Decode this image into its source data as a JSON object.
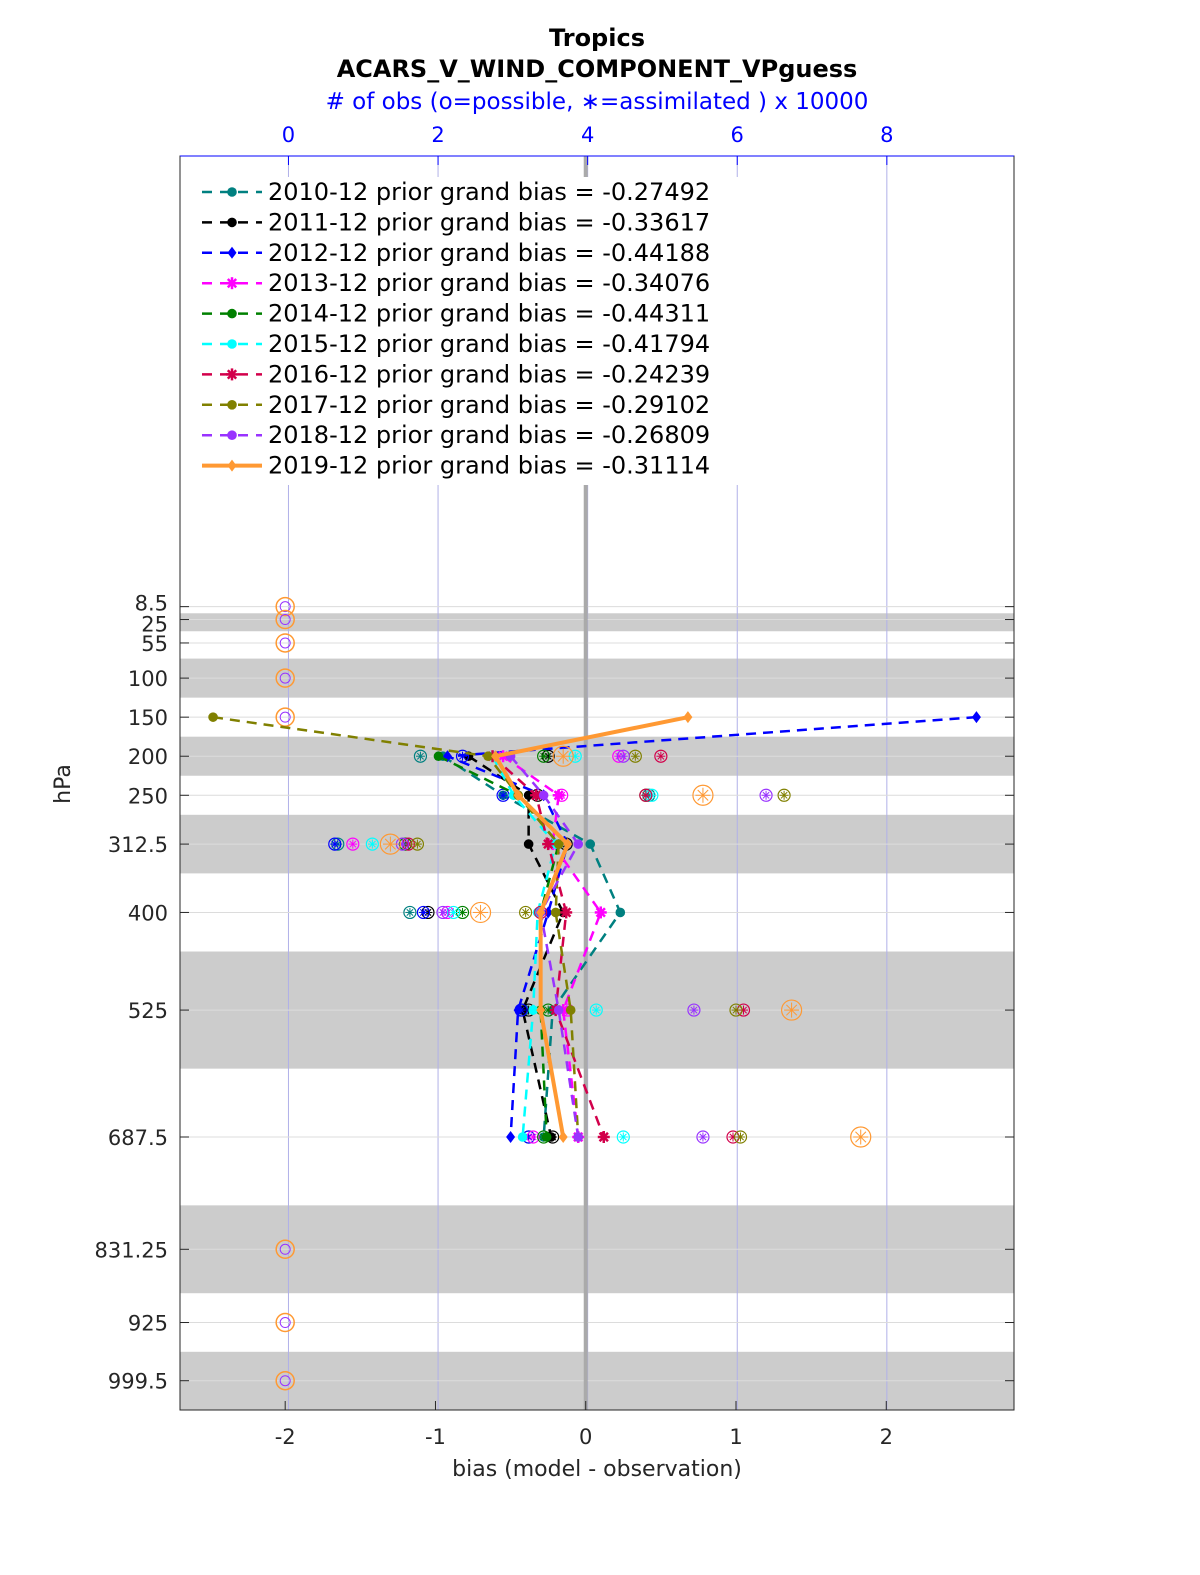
{
  "chart_data": {
    "type": "line",
    "title": "Tropics",
    "subtitle": "ACARS_V_WIND_COMPONENT_VPguess",
    "top_axis_label": "# of obs (o=possible, ∗=assimilated ) x 10000",
    "xlabel": "bias (model - observation)",
    "ylabel": "hPa",
    "xlim": [
      -2.7,
      2.85
    ],
    "x_ticks": [
      "-2",
      "-1",
      "0",
      "1",
      "2"
    ],
    "x_tick_values": [
      -2,
      -1,
      0,
      1,
      2
    ],
    "top_xlim": [
      -1.45,
      9.7
    ],
    "top_ticks": [
      "0",
      "2",
      "4",
      "6",
      "8"
    ],
    "top_tick_values": [
      0,
      2,
      4,
      6,
      8
    ],
    "pressure_levels": [
      8.5,
      25,
      55,
      100,
      150,
      200,
      250,
      312.5,
      400,
      525,
      687.5,
      831.25,
      925,
      999.5
    ],
    "y_tick_labels": [
      "8.5",
      "25",
      "55",
      "100",
      "150",
      "200",
      "250",
      "312.5",
      "400",
      "525",
      "687.5",
      "831.25",
      "925",
      "999.5"
    ],
    "layer_edges": [
      0,
      17,
      40,
      75,
      125,
      175,
      225,
      275,
      350,
      450,
      600,
      775,
      887.5,
      962.5,
      1037
    ],
    "zero_line": 0,
    "series": [
      {
        "name": "2010-12 prior grand bias = -0.27492",
        "color": "#008080",
        "marker": "circle",
        "points": [
          [
            -0.95,
            200
          ],
          [
            -0.55,
            250
          ],
          [
            0.03,
            312.5
          ],
          [
            0.23,
            400
          ],
          [
            -0.22,
            525
          ],
          [
            -0.28,
            687.5
          ]
        ],
        "possible": [
          [
            -1.1,
            200
          ],
          [
            0.42,
            250
          ],
          [
            -1.65,
            312.5
          ],
          [
            -1.17,
            400
          ],
          [
            -0.42,
            525
          ],
          [
            -0.38,
            687.5
          ]
        ]
      },
      {
        "name": "2011-12 prior grand bias = -0.33617",
        "color": "#000000",
        "marker": "circle",
        "points": [
          [
            -0.78,
            200
          ],
          [
            -0.38,
            250
          ],
          [
            -0.38,
            312.5
          ],
          [
            -0.15,
            400
          ],
          [
            -0.42,
            525
          ],
          [
            -0.23,
            687.5
          ]
        ],
        "possible": [
          [
            -0.25,
            200
          ],
          [
            -0.32,
            250
          ],
          [
            -0.13,
            312.5
          ],
          [
            -1.05,
            400
          ],
          [
            -0.38,
            525
          ],
          [
            -0.22,
            687.5
          ]
        ]
      },
      {
        "name": "2012-12 prior grand bias = -0.44188",
        "color": "#0000ff",
        "marker": "diamond",
        "points": [
          [
            2.6,
            150
          ],
          [
            -0.92,
            200
          ],
          [
            -0.28,
            250
          ],
          [
            -0.12,
            312.5
          ],
          [
            -0.25,
            400
          ],
          [
            -0.45,
            525
          ],
          [
            -0.5,
            687.5
          ]
        ],
        "possible": [
          [
            -0.82,
            200
          ],
          [
            -0.55,
            250
          ],
          [
            -1.67,
            312.5
          ],
          [
            -1.08,
            400
          ],
          [
            -0.43,
            525
          ],
          [
            -0.38,
            687.5
          ]
        ]
      },
      {
        "name": "2013-12 prior grand bias = -0.34076",
        "color": "#ff00ff",
        "marker": "star",
        "points": [
          [
            -0.55,
            200
          ],
          [
            -0.18,
            250
          ],
          [
            -0.22,
            312.5
          ],
          [
            0.1,
            400
          ],
          [
            -0.15,
            525
          ],
          [
            -0.05,
            687.5
          ]
        ],
        "possible": [
          [
            0.22,
            200
          ],
          [
            -0.16,
            250
          ],
          [
            -1.55,
            312.5
          ],
          [
            -0.92,
            400
          ],
          [
            -0.12,
            525
          ],
          [
            -0.35,
            687.5
          ]
        ]
      },
      {
        "name": "2014-12 prior grand bias = -0.44311",
        "color": "#008000",
        "marker": "circle",
        "points": [
          [
            -0.98,
            200
          ],
          [
            -0.45,
            250
          ],
          [
            -0.18,
            312.5
          ],
          [
            -0.3,
            400
          ],
          [
            -0.3,
            525
          ],
          [
            -0.26,
            687.5
          ]
        ],
        "possible": [
          [
            -0.28,
            200
          ],
          [
            0.4,
            250
          ],
          [
            -1.2,
            312.5
          ],
          [
            -0.82,
            400
          ],
          [
            -0.25,
            525
          ],
          [
            -0.28,
            687.5
          ]
        ]
      },
      {
        "name": "2015-12 prior grand bias = -0.41794",
        "color": "#00ffff",
        "marker": "circle",
        "points": [
          [
            -0.62,
            200
          ],
          [
            -0.48,
            250
          ],
          [
            -0.2,
            312.5
          ],
          [
            -0.32,
            400
          ],
          [
            -0.35,
            525
          ],
          [
            -0.42,
            687.5
          ]
        ],
        "possible": [
          [
            -0.07,
            200
          ],
          [
            0.44,
            250
          ],
          [
            -1.42,
            312.5
          ],
          [
            -0.88,
            400
          ],
          [
            0.07,
            525
          ],
          [
            0.25,
            687.5
          ]
        ]
      },
      {
        "name": "2016-12 prior grand bias = -0.24239",
        "color": "#d2004b",
        "marker": "star",
        "points": [
          [
            -0.62,
            200
          ],
          [
            -0.33,
            250
          ],
          [
            -0.25,
            312.5
          ],
          [
            -0.13,
            400
          ],
          [
            -0.2,
            525
          ],
          [
            0.12,
            687.5
          ]
        ],
        "possible": [
          [
            0.5,
            200
          ],
          [
            0.4,
            250
          ],
          [
            -1.18,
            312.5
          ],
          [
            -0.3,
            400
          ],
          [
            1.05,
            525
          ],
          [
            0.98,
            687.5
          ]
        ]
      },
      {
        "name": "2017-12 prior grand bias = -0.29102",
        "color": "#808000",
        "marker": "circle",
        "points": [
          [
            -2.48,
            150
          ],
          [
            -0.65,
            200
          ],
          [
            -0.45,
            250
          ],
          [
            -0.18,
            312.5
          ],
          [
            -0.2,
            400
          ],
          [
            -0.1,
            525
          ],
          [
            -0.05,
            687.5
          ]
        ],
        "possible": [
          [
            0.33,
            200
          ],
          [
            1.32,
            250
          ],
          [
            -1.12,
            312.5
          ],
          [
            -0.4,
            400
          ],
          [
            1.0,
            525
          ],
          [
            1.03,
            687.5
          ]
        ]
      },
      {
        "name": "2018-12 prior grand bias = -0.26809",
        "color": "#9933ff",
        "marker": "circle",
        "points": [
          [
            -0.5,
            200
          ],
          [
            -0.28,
            250
          ],
          [
            -0.05,
            312.5
          ],
          [
            -0.3,
            400
          ],
          [
            -0.18,
            525
          ],
          [
            -0.05,
            687.5
          ]
        ],
        "possible": [
          [
            0.25,
            200
          ],
          [
            1.2,
            250
          ],
          [
            -1.22,
            312.5
          ],
          [
            -0.95,
            400
          ],
          [
            0.72,
            525
          ],
          [
            0.78,
            687.5
          ]
        ]
      },
      {
        "name": "2019-12 prior grand bias = -0.31114",
        "color": "#ff9933",
        "marker": "diamond",
        "bold": true,
        "points": [
          [
            0.68,
            150
          ],
          [
            -0.6,
            200
          ],
          [
            -0.45,
            250
          ],
          [
            -0.12,
            312.5
          ],
          [
            -0.3,
            400
          ],
          [
            -0.3,
            525
          ],
          [
            -0.15,
            687.5
          ]
        ],
        "possible": [
          [
            -0.15,
            200
          ],
          [
            0.78,
            250
          ],
          [
            -1.3,
            312.5
          ],
          [
            -0.7,
            400
          ],
          [
            1.37,
            525
          ],
          [
            1.83,
            687.5
          ]
        ]
      }
    ],
    "empty_level_markers_x": -2,
    "empty_levels": [
      8.5,
      25,
      55,
      100,
      150,
      831.25,
      925,
      999.5
    ]
  }
}
